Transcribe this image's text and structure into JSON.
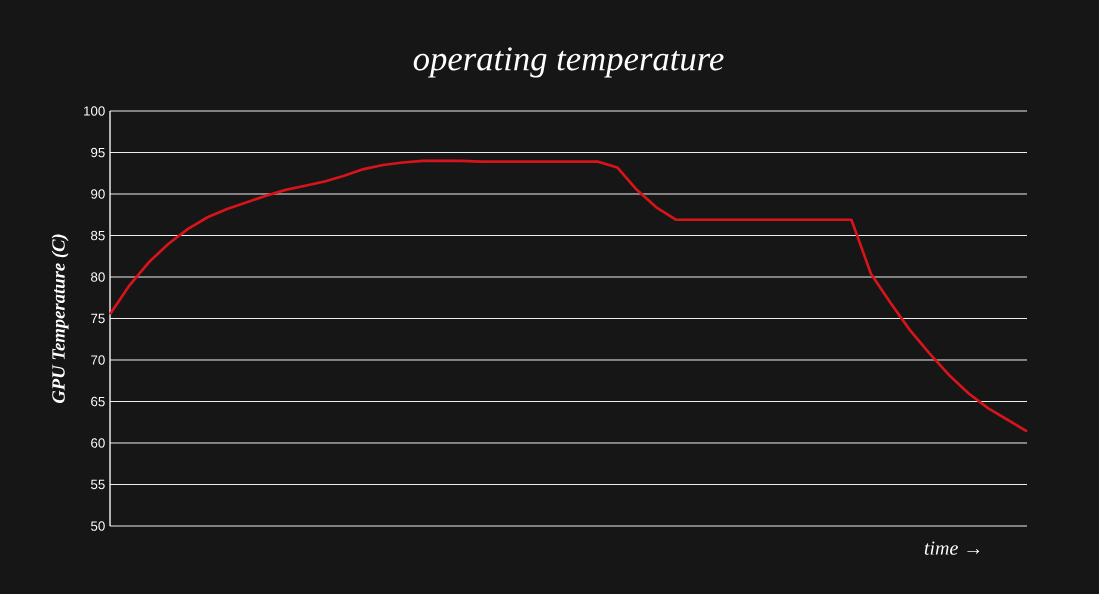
{
  "chart_data": {
    "type": "line",
    "title": "operating temperature",
    "xlabel": "time →",
    "ylabel": "GPU Temperature (C)",
    "categories": [
      null,
      null,
      null,
      null,
      null,
      null,
      null,
      null,
      null,
      null,
      null,
      null,
      null,
      null,
      null,
      null,
      null,
      null,
      null,
      null,
      null,
      null,
      null,
      null,
      null,
      null,
      null,
      null,
      null,
      null,
      null,
      null,
      null,
      null,
      null,
      null,
      null,
      null,
      null,
      null,
      null,
      null,
      null,
      null,
      null,
      null,
      null,
      null
    ],
    "series": [
      {
        "color": "#d7141a",
        "values": [
          75.5,
          79,
          81.8,
          84,
          85.8,
          87.2,
          88.2,
          89,
          89.8,
          90.5,
          91,
          91.5,
          92.2,
          93,
          93.5,
          93.8,
          94,
          94,
          94,
          93.9,
          93.9,
          93.9,
          93.9,
          93.9,
          93.9,
          93.9,
          93.2,
          90.5,
          88.4,
          86.9,
          86.9,
          86.9,
          86.9,
          86.9,
          86.9,
          86.9,
          86.9,
          86.9,
          86.9,
          80.4,
          76.9,
          73.6,
          70.8,
          68.2,
          66,
          64.2,
          62.8,
          61.4
        ]
      }
    ],
    "ylim": [
      50,
      100
    ],
    "yticks": [
      50,
      55,
      60,
      65,
      70,
      75,
      80,
      85,
      90,
      95,
      100
    ],
    "grid": "y",
    "marker": "none",
    "line_style": "solid"
  }
}
